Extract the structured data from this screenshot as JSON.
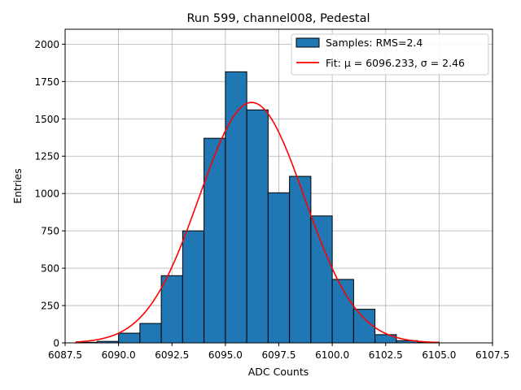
{
  "chart_data": {
    "type": "bar",
    "title": "Run 599, channel008, Pedestal",
    "xlabel": "ADC Counts",
    "ylabel": "Entries",
    "xlim": [
      6087.5,
      6107.5
    ],
    "ylim": [
      0,
      2100
    ],
    "xticks": [
      6087.5,
      6090.0,
      6092.5,
      6095.0,
      6097.5,
      6100.0,
      6102.5,
      6105.0,
      6107.5
    ],
    "xtick_labels": [
      "6087.5",
      "6090.0",
      "6092.5",
      "6095.0",
      "6097.5",
      "6100.0",
      "6102.5",
      "6105.0",
      "6107.5"
    ],
    "yticks": [
      0,
      250,
      500,
      750,
      1000,
      1250,
      1500,
      1750,
      2000
    ],
    "ytick_labels": [
      "0",
      "250",
      "500",
      "750",
      "1000",
      "1250",
      "1500",
      "1750",
      "2000"
    ],
    "grid": true,
    "legend_position": "top-right",
    "bin_edges": [
      6088,
      6089,
      6090,
      6091,
      6092,
      6093,
      6094,
      6095,
      6096,
      6097,
      6098,
      6099,
      6100,
      6101,
      6102,
      6103,
      6104,
      6105
    ],
    "counts": [
      4,
      10,
      65,
      130,
      450,
      750,
      1370,
      1815,
      1560,
      1005,
      1115,
      850,
      425,
      225,
      55,
      15,
      5
    ],
    "series": [
      {
        "name": "Samples: RMS=2.4",
        "kind": "histogram",
        "color": "#1f77b4",
        "edgecolor": "#000000"
      },
      {
        "name": "Fit: μ = 6096.233, σ = 2.46",
        "kind": "line",
        "color": "#ff0000",
        "mu": 6096.233,
        "sigma": 2.46,
        "amplitude": 1610,
        "x_range": [
          6088,
          6105
        ]
      }
    ]
  }
}
